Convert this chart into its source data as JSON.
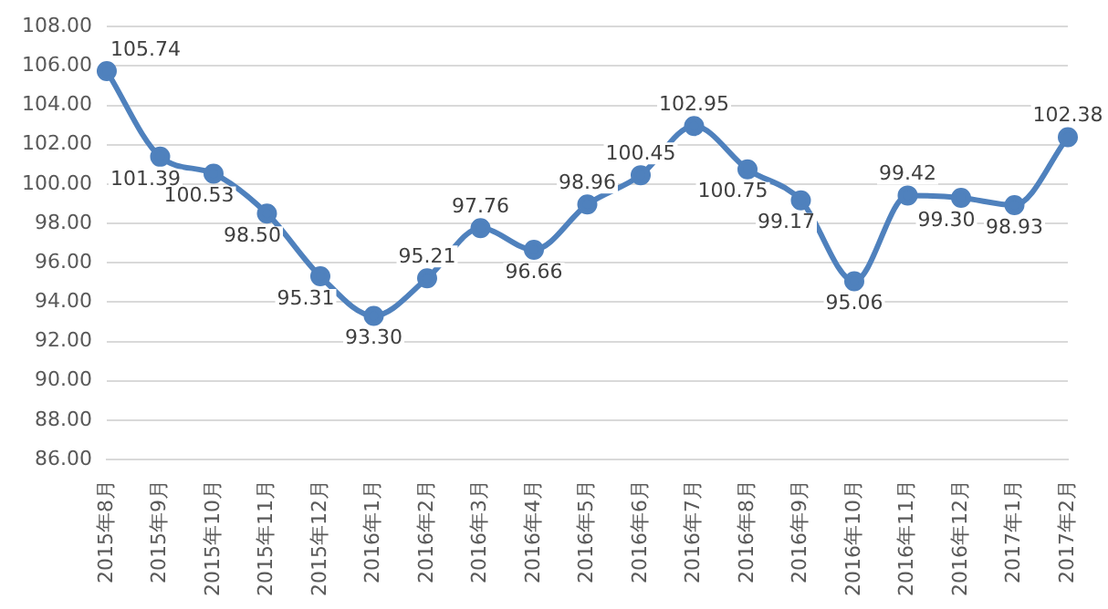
{
  "chart_data": {
    "type": "line",
    "categories": [
      "2015年8月",
      "2015年9月",
      "2015年10月",
      "2015年11月",
      "2015年12月",
      "2016年1月",
      "2016年2月",
      "2016年3月",
      "2016年4月",
      "2016年5月",
      "2016年6月",
      "2016年7月",
      "2016年8月",
      "2016年9月",
      "2016年10月",
      "2016年11月",
      "2016年12月",
      "2017年1月",
      "2017年2月"
    ],
    "series": [
      {
        "color": "#4f81bd",
        "values": [
          105.74,
          101.39,
          100.53,
          98.5,
          95.31,
          93.3,
          95.21,
          97.76,
          96.66,
          98.96,
          100.45,
          102.95,
          100.75,
          99.17,
          95.06,
          99.42,
          99.3,
          98.93,
          102.38
        ],
        "value_labels": [
          "105.74",
          "101.39",
          "100.53",
          "98.50",
          "95.31",
          "93.30",
          "95.21",
          "97.76",
          "96.66",
          "98.96",
          "100.45",
          "102.95",
          "100.75",
          "99.17",
          "95.06",
          "99.42",
          "99.30",
          "98.93",
          "102.38"
        ]
      }
    ],
    "ylim": [
      86,
      108
    ],
    "yticks": [
      {
        "value": 86,
        "label": "86.00"
      },
      {
        "value": 88,
        "label": "88.00"
      },
      {
        "value": 90,
        "label": "90.00"
      },
      {
        "value": 92,
        "label": "92.00"
      },
      {
        "value": 94,
        "label": "94.00"
      },
      {
        "value": 96,
        "label": "96.00"
      },
      {
        "value": 98,
        "label": "98.00"
      },
      {
        "value": 100,
        "label": "100.00"
      },
      {
        "value": 102,
        "label": "102.00"
      },
      {
        "value": 104,
        "label": "104.00"
      },
      {
        "value": 106,
        "label": "106.00"
      },
      {
        "value": 108,
        "label": "108.00"
      }
    ],
    "grid": "y",
    "marker": "circle",
    "line_style": "solid",
    "legend": false
  }
}
